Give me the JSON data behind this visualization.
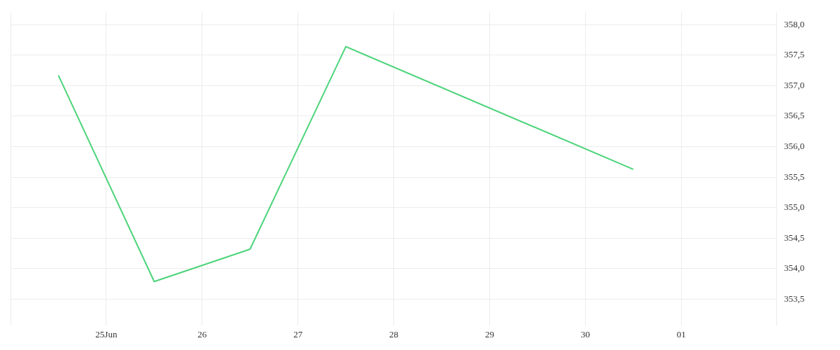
{
  "chart_data": {
    "type": "line",
    "x": [
      "--06-24T12:00",
      "--06-25T12:00",
      "--06-26T12:00",
      "--06-27T12:00",
      "--06-30T12:00"
    ],
    "series": [
      {
        "color": "#4cd47a",
        "values": [
          357.17,
          353.79,
          354.32,
          357.64,
          355.63
        ]
      }
    ],
    "xlim": [
      "--06-24",
      "--07-02"
    ],
    "xticks": [
      {
        "value": "--06-25",
        "label": "25Jun"
      },
      {
        "value": "--06-26",
        "label": "26"
      },
      {
        "value": "--06-27",
        "label": "27"
      },
      {
        "value": "--06-28",
        "label": "28"
      },
      {
        "value": "--06-29",
        "label": "29"
      },
      {
        "value": "--06-30",
        "label": "30"
      },
      {
        "value": "--07-01",
        "label": "01"
      }
    ],
    "ylim": [
      353.15,
      358.2
    ],
    "yticks": [
      {
        "value": 353.5,
        "label": "353,5"
      },
      {
        "value": 354,
        "label": "354,0"
      },
      {
        "value": 354.5,
        "label": "354,5"
      },
      {
        "value": 355,
        "label": "355,0"
      },
      {
        "value": 355.5,
        "label": "355,5"
      },
      {
        "value": 356,
        "label": "356,0"
      },
      {
        "value": 356.5,
        "label": "356,5"
      },
      {
        "value": 357,
        "label": "357,0"
      },
      {
        "value": 357.5,
        "label": "357,5"
      },
      {
        "value": 358,
        "label": "358,0"
      }
    ],
    "grid": true,
    "legend": false,
    "marker": "none",
    "line_style": "solid"
  }
}
